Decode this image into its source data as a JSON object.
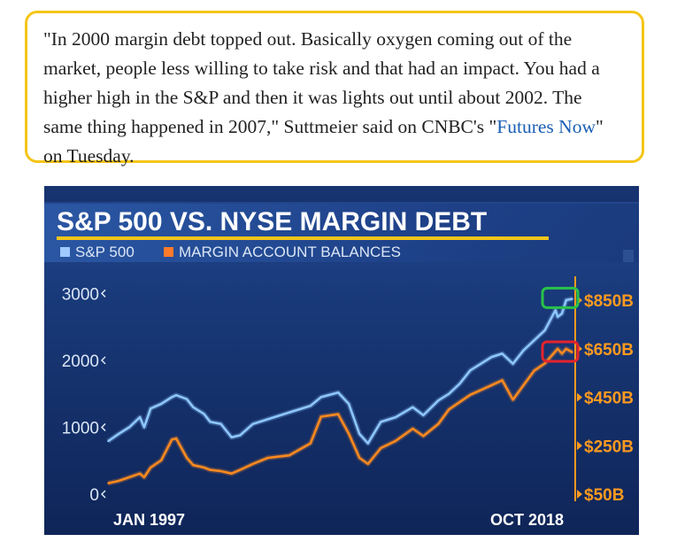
{
  "quote": {
    "text_before": "\"In 2000 margin debt topped out. Basically oxygen coming out of the market, people less willing to take risk and that had an impact. You had a higher high in the S&P and then it was lights out until about 2002. The same thing happened in 2007,\" Suttmeier said on CNBC's \"",
    "link_text": "Futures Now",
    "text_after": "\" on Tuesday."
  },
  "colors": {
    "highlight_border": "#f5c518",
    "link": "#1a5fb4",
    "chart_bg": "#142f6b",
    "sp500_line": "#8ec7ff",
    "margin_line": "#ff8a1f",
    "right_axis": "#ff9a1f",
    "green_box": "#29c24a",
    "red_box": "#e5232d"
  },
  "chart_data": {
    "type": "line",
    "title": "S&P 500 VS. NYSE MARGIN DEBT",
    "legend_position": "top-left",
    "grid": false,
    "x_start_label": "JAN 1997",
    "x_end_label": "OCT 2018",
    "xlim": [
      1997.0,
      2018.8
    ],
    "y_left": {
      "ticks": [
        "0",
        "1000",
        "2000",
        "3000"
      ],
      "tick_values": [
        0,
        1000,
        2000,
        3000
      ],
      "ylim": [
        0,
        3150
      ]
    },
    "y_right": {
      "ticks": [
        "$50B",
        "$250B",
        "$450B",
        "$650B",
        "$850B"
      ],
      "tick_values": [
        50,
        250,
        450,
        650,
        850
      ],
      "ylim": [
        50,
        920
      ]
    },
    "series": [
      {
        "name": "S&P 500",
        "axis": "left",
        "x": [
          1997.0,
          1997.5,
          1998.0,
          1998.5,
          1998.7,
          1999.0,
          1999.5,
          2000.0,
          2000.2,
          2000.7,
          2001.0,
          2001.5,
          2001.8,
          2002.3,
          2002.8,
          2003.2,
          2003.8,
          2004.5,
          2005.5,
          2006.5,
          2007.0,
          2007.8,
          2008.3,
          2008.8,
          2009.2,
          2009.8,
          2010.5,
          2011.3,
          2011.8,
          2012.5,
          2013.0,
          2013.5,
          2014.0,
          2014.5,
          2015.0,
          2015.5,
          2016.0,
          2016.5,
          2017.0,
          2017.5,
          2018.0,
          2018.1,
          2018.3,
          2018.5,
          2018.8
        ],
        "values": [
          790,
          900,
          1000,
          1150,
          1000,
          1280,
          1350,
          1450,
          1480,
          1420,
          1300,
          1200,
          1080,
          1050,
          850,
          880,
          1050,
          1120,
          1220,
          1320,
          1450,
          1520,
          1350,
          900,
          760,
          1080,
          1150,
          1300,
          1180,
          1400,
          1500,
          1650,
          1850,
          1950,
          2050,
          2100,
          1950,
          2150,
          2300,
          2450,
          2750,
          2650,
          2700,
          2900,
          2920
        ]
      },
      {
        "name": "MARGIN ACCOUNT BALANCES",
        "axis": "right",
        "x": [
          1997.0,
          1997.5,
          1998.0,
          1998.5,
          1998.7,
          1999.0,
          1999.5,
          2000.0,
          2000.2,
          2000.7,
          2001.0,
          2001.5,
          2001.8,
          2002.3,
          2002.8,
          2003.2,
          2003.8,
          2004.5,
          2005.5,
          2006.5,
          2007.0,
          2007.8,
          2008.3,
          2008.8,
          2009.2,
          2009.8,
          2010.5,
          2011.3,
          2011.8,
          2012.5,
          2013.0,
          2013.5,
          2014.0,
          2014.5,
          2015.0,
          2015.5,
          2016.0,
          2016.5,
          2017.0,
          2017.5,
          2018.0,
          2018.1,
          2018.3,
          2018.5,
          2018.8
        ],
        "values": [
          95,
          105,
          120,
          135,
          120,
          160,
          190,
          275,
          280,
          200,
          170,
          160,
          150,
          145,
          135,
          150,
          175,
          200,
          210,
          260,
          370,
          380,
          300,
          200,
          175,
          240,
          270,
          320,
          290,
          340,
          400,
          430,
          460,
          480,
          500,
          520,
          440,
          500,
          560,
          590,
          640,
          650,
          630,
          650,
          635
        ]
      }
    ]
  }
}
